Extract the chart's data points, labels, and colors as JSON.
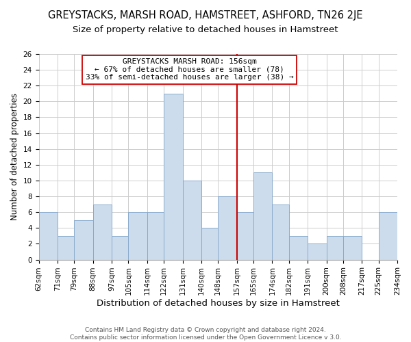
{
  "title": "GREYSTACKS, MARSH ROAD, HAMSTREET, ASHFORD, TN26 2JE",
  "subtitle": "Size of property relative to detached houses in Hamstreet",
  "xlabel": "Distribution of detached houses by size in Hamstreet",
  "ylabel": "Number of detached properties",
  "bar_color": "#ccdcec",
  "bar_edgecolor": "#88aacc",
  "bin_edges": [
    62,
    71,
    79,
    88,
    97,
    105,
    114,
    122,
    131,
    140,
    148,
    157,
    165,
    174,
    182,
    191,
    200,
    208,
    217,
    225,
    234
  ],
  "bin_labels": [
    "62sqm",
    "71sqm",
    "79sqm",
    "88sqm",
    "97sqm",
    "105sqm",
    "114sqm",
    "122sqm",
    "131sqm",
    "140sqm",
    "148sqm",
    "157sqm",
    "165sqm",
    "174sqm",
    "182sqm",
    "191sqm",
    "200sqm",
    "208sqm",
    "217sqm",
    "225sqm",
    "234sqm"
  ],
  "counts": [
    6,
    3,
    5,
    7,
    3,
    6,
    6,
    21,
    10,
    4,
    8,
    6,
    11,
    7,
    3,
    2,
    3,
    3,
    0,
    6
  ],
  "vline_x": 157,
  "vline_color": "#cc0000",
  "annotation_title": "GREYSTACKS MARSH ROAD: 156sqm",
  "annotation_line1": "← 67% of detached houses are smaller (78)",
  "annotation_line2": "33% of semi-detached houses are larger (38) →",
  "annotation_box_color": "#ffffff",
  "annotation_box_edgecolor": "#cc0000",
  "ylim": [
    0,
    26
  ],
  "yticks": [
    0,
    2,
    4,
    6,
    8,
    10,
    12,
    14,
    16,
    18,
    20,
    22,
    24,
    26
  ],
  "grid_color": "#cccccc",
  "footer1": "Contains HM Land Registry data © Crown copyright and database right 2024.",
  "footer2": "Contains public sector information licensed under the Open Government Licence v 3.0.",
  "background_color": "#ffffff",
  "title_fontsize": 10.5,
  "subtitle_fontsize": 9.5,
  "xlabel_fontsize": 9.5,
  "ylabel_fontsize": 8.5,
  "tick_fontsize": 7.5,
  "footer_fontsize": 6.5
}
